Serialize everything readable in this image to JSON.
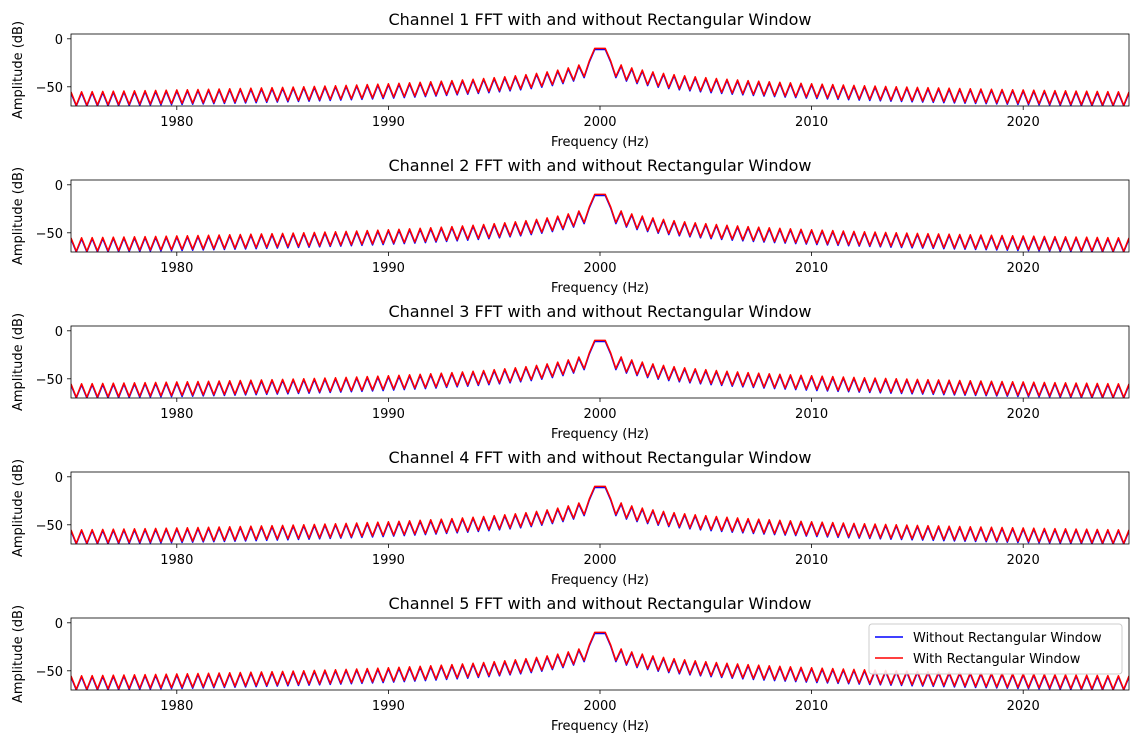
{
  "chart_data": {
    "type": "line",
    "x_label": "Frequency (Hz)",
    "y_label": "Amplitude (dB)",
    "xlim": [
      1975,
      2025
    ],
    "ylim": [
      -70,
      5
    ],
    "x_ticks": [
      1980,
      1990,
      2000,
      2010,
      2020
    ],
    "y_ticks": [
      0,
      -50
    ],
    "grid": false,
    "legend_location": "right",
    "legend_panel_index": 4,
    "peak": {
      "x": 2000,
      "y": -10
    },
    "series": [
      {
        "name": "Without Rectangular Window",
        "color": "#0000ff"
      },
      {
        "name": "With Rectangular Window",
        "color": "#ff0000"
      }
    ],
    "panels": [
      {
        "title": "Channel 1 FFT with and without Rectangular Window"
      },
      {
        "title": "Channel 2 FFT with and without Rectangular Window"
      },
      {
        "title": "Channel 3 FFT with and without Rectangular Window"
      },
      {
        "title": "Channel 4 FFT with and without Rectangular Window"
      },
      {
        "title": "Channel 5 FFT with and without Rectangular Window"
      }
    ]
  }
}
